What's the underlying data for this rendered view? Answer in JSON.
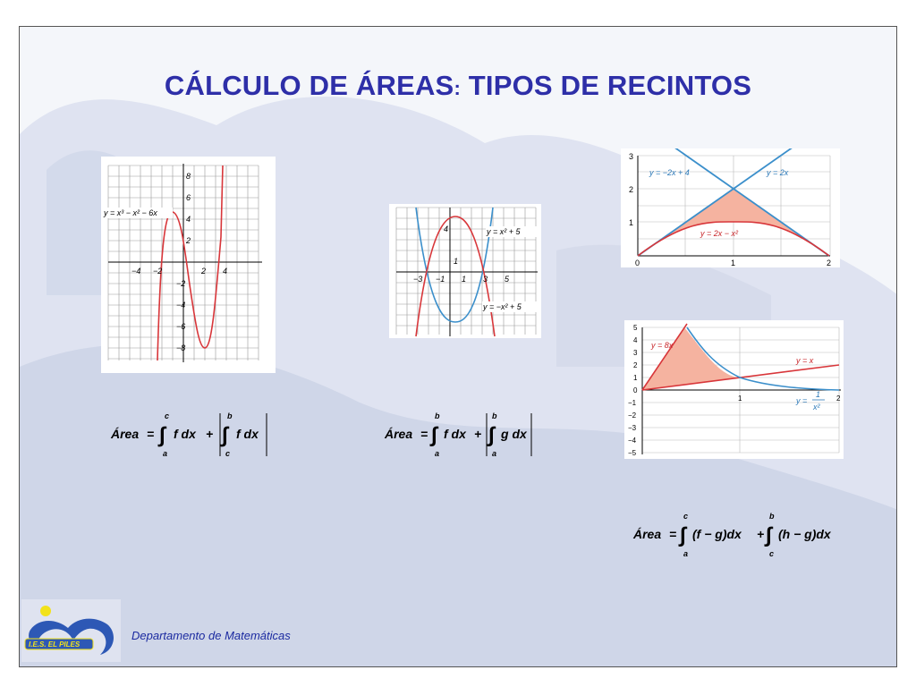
{
  "slide": {
    "title_main": "CÁLCULO DE ÁREAS",
    "title_colon": ":",
    "title_rest": " TIPOS DE RECINTOS",
    "footer": "Departamento de Matemáticas",
    "logo_text": "I.E.S. EL PILES"
  },
  "graphs": {
    "g1": {
      "label": "y = x³ − x² − 6x",
      "x_ticks": [
        "−4",
        "−2",
        "2",
        "4"
      ],
      "y_ticks": [
        "8",
        "6",
        "4",
        "2",
        "−2",
        "−4",
        "−6",
        "−8"
      ]
    },
    "g2": {
      "label_top": "y = x² + 5",
      "label_bottom": "y = −x² + 5",
      "x_ticks": [
        "−3",
        "−1",
        "1",
        "3",
        "5"
      ],
      "y_ticks": [
        "4",
        "1"
      ]
    },
    "g3": {
      "label_left": "y = −2x + 4",
      "label_right": "y = 2x",
      "label_curve": "y = 2x − x²",
      "x_ticks": [
        "0",
        "1",
        "2"
      ],
      "y_ticks": [
        "3",
        "2",
        "1"
      ]
    },
    "g4": {
      "label_curve1": "y = 8x",
      "label_line": "y = x",
      "label_curve2_prefix": "y =",
      "label_curve2_num": "1",
      "label_curve2_den": "x²",
      "x_ticks": [
        "1",
        "2"
      ],
      "y_ticks": [
        "5",
        "4",
        "3",
        "2",
        "1",
        "0",
        "−1",
        "−2",
        "−3",
        "−4",
        "−5"
      ]
    }
  },
  "formulas": {
    "f1": {
      "lhs": "Área",
      "eq": "=",
      "lower1": "a",
      "upper1": "c",
      "body1": "f  dx",
      "plus": "+",
      "lower2": "c",
      "upper2": "b",
      "body2": "f  dx"
    },
    "f2": {
      "lhs": "Área",
      "eq": "=",
      "lower1": "a",
      "upper1": "b",
      "body1": "f dx",
      "plus": "+",
      "lower2": "a",
      "upper2": "b",
      "body2": "g dx"
    },
    "f3": {
      "lhs": "Área",
      "eq": "=",
      "lower1": "a",
      "upper1": "c",
      "body1": "(f − g)dx",
      "plus": "+",
      "lower2": "c",
      "upper2": "b",
      "body2": "(h − g)dx"
    }
  },
  "colors": {
    "title": "#2e2fa8",
    "red": "#d8363a",
    "blue": "#3b8fcb",
    "fill": "#f5b3a0",
    "footer": "#1b2aa0"
  }
}
